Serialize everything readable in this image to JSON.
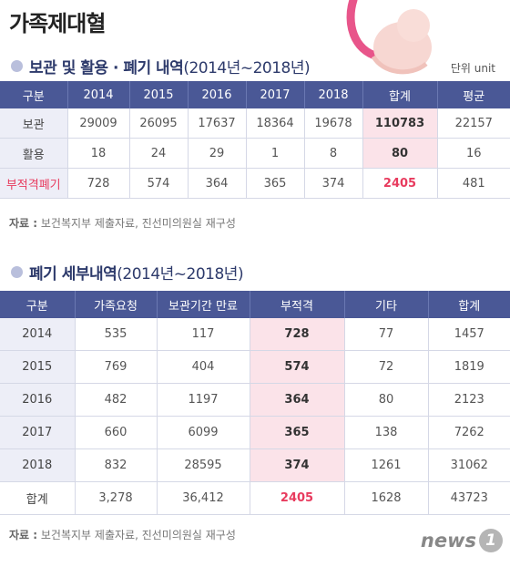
{
  "title": "가족제대혈",
  "unit": "단위 unit",
  "section1": {
    "title": "보관 및 활용 · 폐기 내역",
    "range": "(2014년~2018년)",
    "headers": [
      "구분",
      "2014",
      "2015",
      "2016",
      "2017",
      "2018",
      "합계",
      "평균"
    ],
    "rows": [
      {
        "label": "보관",
        "values": [
          "29009",
          "26095",
          "17637",
          "18364",
          "19678",
          "110783",
          "22157"
        ]
      },
      {
        "label": "활용",
        "values": [
          "18",
          "24",
          "29",
          "1",
          "8",
          "80",
          "16"
        ]
      },
      {
        "label": "부적격폐기",
        "values": [
          "728",
          "574",
          "364",
          "365",
          "374",
          "2405",
          "481"
        ]
      }
    ]
  },
  "source1": {
    "label": "자료 :",
    "text": "보건복지부 제출자료, 진선미의원실 재구성"
  },
  "section2": {
    "title": "폐기 세부내역",
    "range": "(2014년~2018년)",
    "headers": [
      "구분",
      "가족요청",
      "보관기간 만료",
      "부적격",
      "기타",
      "합계"
    ],
    "rows": [
      {
        "label": "2014",
        "values": [
          "535",
          "117",
          "728",
          "77",
          "1457"
        ]
      },
      {
        "label": "2015",
        "values": [
          "769",
          "404",
          "574",
          "72",
          "1819"
        ]
      },
      {
        "label": "2016",
        "values": [
          "482",
          "1197",
          "364",
          "80",
          "2123"
        ]
      },
      {
        "label": "2017",
        "values": [
          "660",
          "6099",
          "365",
          "138",
          "7262"
        ]
      },
      {
        "label": "2018",
        "values": [
          "832",
          "28595",
          "374",
          "1261",
          "31062"
        ]
      },
      {
        "label": "합계",
        "values": [
          "3,278",
          "36,412",
          "2405",
          "1628",
          "43723"
        ]
      }
    ]
  },
  "source2": {
    "label": "자료 :",
    "text": "보건복지부 제출자료, 진선미의원실 재구성"
  },
  "logo": {
    "text": "news",
    "mark": "1"
  },
  "colors": {
    "header_bg": "#4a5896",
    "row_head_bg": "#edeef7",
    "highlight_bg": "#fbe3e9",
    "highlight_text": "#e83b5e"
  }
}
